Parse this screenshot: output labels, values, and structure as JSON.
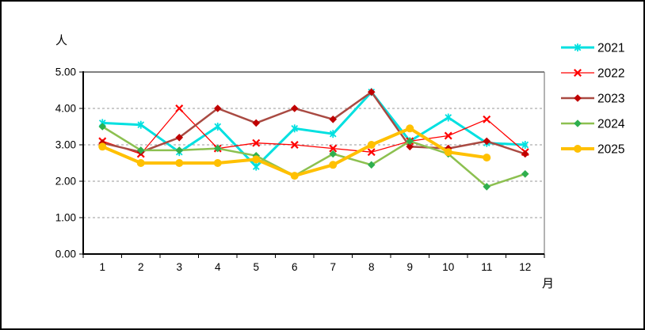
{
  "frame": {
    "background": "#FFFFFF",
    "border_color": "#000000"
  },
  "chart_data": {
    "type": "line",
    "title": "",
    "ylabel": "人",
    "xlabel": "月",
    "categories": [
      "1",
      "2",
      "3",
      "4",
      "5",
      "6",
      "7",
      "8",
      "9",
      "10",
      "11",
      "12"
    ],
    "ylim": [
      0,
      5
    ],
    "ytick_labels": [
      "0.00",
      "1.00",
      "2.00",
      "3.00",
      "4.00",
      "5.00"
    ],
    "grid": true,
    "legend_position": "right",
    "colors": {
      "axis": "#000000",
      "plot_frame": "#808080",
      "gridline": "#999999",
      "text": "#000000"
    },
    "series": [
      {
        "name": "2021",
        "color": "#00E0E0",
        "marker": "asterisk",
        "marker_color": "#00E0E0",
        "line_width": 3,
        "values": [
          3.6,
          3.55,
          2.8,
          3.5,
          2.4,
          3.45,
          3.3,
          4.45,
          3.1,
          3.75,
          3.05,
          3.0
        ]
      },
      {
        "name": "2022",
        "color": "#FF0000",
        "marker": "x",
        "marker_color": "#FF0000",
        "line_width": 1.3,
        "values": [
          3.1,
          2.75,
          4.0,
          2.9,
          3.05,
          3.0,
          2.9,
          2.8,
          3.1,
          3.25,
          3.7,
          2.8
        ]
      },
      {
        "name": "2023",
        "color": "#A94A42",
        "marker": "diamond",
        "marker_color": "#C00000",
        "line_width": 2.5,
        "values": [
          3.05,
          2.8,
          3.2,
          4.0,
          3.6,
          4.0,
          3.7,
          4.45,
          2.95,
          2.9,
          3.1,
          2.75
        ]
      },
      {
        "name": "2024",
        "color": "#8CC050",
        "marker": "diamond",
        "marker_color": "#2FAF4E",
        "line_width": 2.5,
        "values": [
          3.5,
          2.85,
          2.85,
          2.9,
          2.7,
          2.15,
          2.75,
          2.45,
          3.1,
          2.75,
          1.85,
          2.2
        ]
      },
      {
        "name": "2025",
        "color": "#FFC000",
        "marker": "circle",
        "marker_color": "#FFC000",
        "line_width": 4,
        "values": [
          2.95,
          2.5,
          2.5,
          2.5,
          2.6,
          2.15,
          2.45,
          3.0,
          3.45,
          2.8,
          2.65,
          null
        ]
      }
    ]
  }
}
